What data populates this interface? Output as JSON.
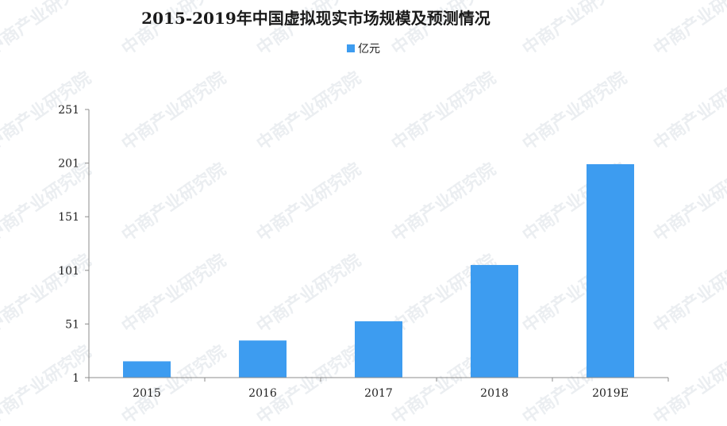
{
  "watermark": {
    "text": "中商产业研究院"
  },
  "chart_data": {
    "type": "bar",
    "title": "2015-2019年中国虚拟现实市场规模及预测情况",
    "xlabel": "",
    "ylabel": "",
    "categories": [
      "2015",
      "2016",
      "2017",
      "2018",
      "2019E"
    ],
    "series": [
      {
        "name": "亿元",
        "values": [
          16.2,
          35.6,
          53.5,
          106.0,
          200.0
        ],
        "color": "#3d9cf0"
      }
    ],
    "ylim": [
      1,
      251
    ],
    "yticks": [
      "1",
      "51",
      "101",
      "151",
      "201",
      "251"
    ],
    "legend_position": "top-center",
    "grid": false
  }
}
